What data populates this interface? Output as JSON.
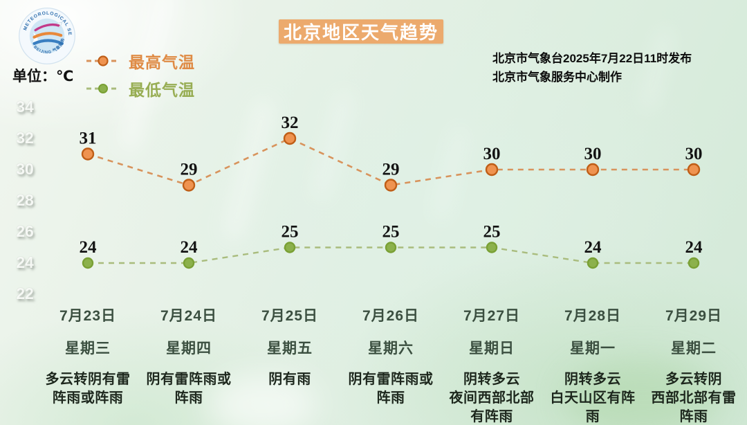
{
  "header": {
    "title": "北京地区天气趋势",
    "unit_label": "单位：℃",
    "issued_line1": "北京市气象台2025年7月22日11时发布",
    "issued_line2": "北京市气象服务中心制作",
    "logo_ring_top": "METEOROLOGICAL SERVICE",
    "logo_ring_bottom": "BEIJING 气象服务"
  },
  "legend": {
    "high_label": "最高气温",
    "low_label": "最低气温"
  },
  "colors": {
    "title_badge_bg": "#ecaa6d",
    "high_line": "#d8935c",
    "high_marker_fill": "#ef9350",
    "high_marker_stroke": "#bf5e17",
    "high_legend_text": "#df8b45",
    "low_line": "#a9bc7d",
    "low_marker_fill": "#8cb14c",
    "low_marker_stroke": "#79a034",
    "low_legend_text": "#97ad53",
    "date_text": "#3b4f40",
    "weather_text": "#1d271d",
    "value_label": "#131313"
  },
  "chart_data": {
    "type": "line",
    "x": [
      "7月23日",
      "7月24日",
      "7月25日",
      "7月26日",
      "7月27日",
      "7月28日",
      "7月29日"
    ],
    "weekdays": [
      "星期三",
      "星期四",
      "星期五",
      "星期六",
      "星期日",
      "星期一",
      "星期二"
    ],
    "series": [
      {
        "name": "最高气温",
        "values": [
          31,
          29,
          32,
          29,
          30,
          30,
          30
        ],
        "style": "high"
      },
      {
        "name": "最低气温",
        "values": [
          24,
          24,
          25,
          25,
          25,
          24,
          24
        ],
        "style": "low"
      }
    ],
    "yticks": [
      34,
      32,
      30,
      28,
      26,
      24,
      22
    ],
    "ylim": [
      21,
      35
    ],
    "grid": false,
    "legend_position": "top-left",
    "line_style": "dashed",
    "data_labels": true
  },
  "columns": [
    {
      "date": "7月23日",
      "weekday": "星期三",
      "weather": "多云转阴有雷\n阵雨或阵雨"
    },
    {
      "date": "7月24日",
      "weekday": "星期四",
      "weather": "阴有雷阵雨或\n阵雨"
    },
    {
      "date": "7月25日",
      "weekday": "星期五",
      "weather": "阴有雨"
    },
    {
      "date": "7月26日",
      "weekday": "星期六",
      "weather": "阴有雷阵雨或\n阵雨"
    },
    {
      "date": "7月27日",
      "weekday": "星期日",
      "weather": "阴转多云\n夜间西部北部\n有阵雨"
    },
    {
      "date": "7月28日",
      "weekday": "星期一",
      "weather": "阴转多云\n白天山区有阵\n雨"
    },
    {
      "date": "7月29日",
      "weekday": "星期二",
      "weather": "多云转阴\n西部北部有雷\n阵雨"
    }
  ]
}
